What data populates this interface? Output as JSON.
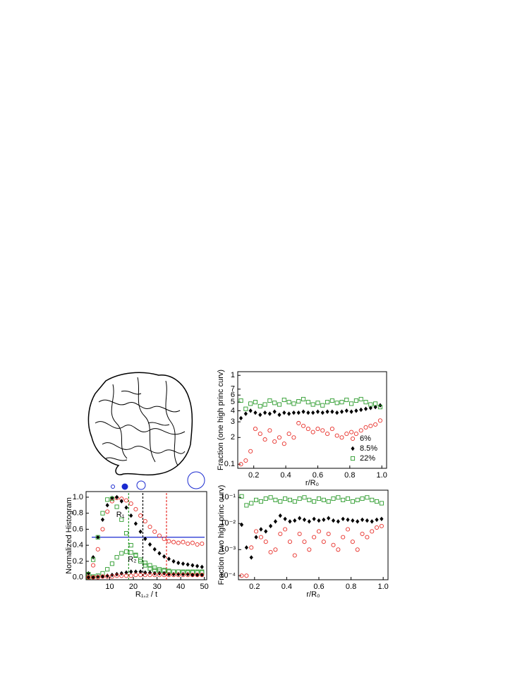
{
  "chart_data": [
    {
      "type": "scatter",
      "ylabel": "Normalized Histogram",
      "xlabel": "R₁,₂ / t",
      "x": [
        1,
        3,
        5,
        7,
        9,
        11,
        13,
        15,
        17,
        19,
        21,
        23,
        25,
        27,
        29,
        31,
        33,
        35,
        37,
        39,
        41,
        43,
        45,
        47,
        49
      ],
      "series": [
        {
          "color": "#e8302a",
          "marker": "circle",
          "values": [
            0.03,
            0.15,
            0.35,
            0.6,
            0.82,
            0.95,
            0.99,
            0.98,
            0.96,
            0.92,
            0.85,
            0.77,
            0.7,
            0.63,
            0.57,
            0.52,
            0.48,
            0.45,
            0.44,
            0.43,
            0.44,
            0.42,
            0.43,
            0.41,
            0.42
          ]
        },
        {
          "color": "#000000",
          "marker": "diamond",
          "values": [
            0.05,
            0.25,
            0.5,
            0.72,
            0.9,
            0.99,
            1.0,
            0.95,
            0.87,
            0.77,
            0.67,
            0.57,
            0.48,
            0.41,
            0.35,
            0.3,
            0.26,
            0.23,
            0.2,
            0.18,
            0.17,
            0.16,
            0.15,
            0.14,
            0.13
          ]
        },
        {
          "color": "#2a9a2a",
          "marker": "square",
          "values": [
            0.04,
            0.22,
            0.5,
            0.8,
            0.97,
            0.98,
            0.88,
            0.72,
            0.55,
            0.4,
            0.28,
            0.2,
            0.15,
            0.11,
            0.09,
            0.08,
            0.08,
            0.07,
            0.07,
            0.07,
            0.07,
            0.07,
            0.07,
            0.07,
            0.07
          ]
        },
        {
          "color": "#2a9a2a",
          "marker": "square",
          "values": [
            0,
            0.01,
            0.02,
            0.05,
            0.1,
            0.17,
            0.25,
            0.3,
            0.32,
            0.31,
            0.27,
            0.22,
            0.18,
            0.15,
            0.12,
            0.1,
            0.09,
            0.08,
            0.07,
            0.07,
            0.06,
            0.06,
            0.06,
            0.06,
            0.06
          ]
        },
        {
          "color": "#000000",
          "marker": "diamond",
          "values": [
            0,
            0,
            0.01,
            0.01,
            0.02,
            0.03,
            0.04,
            0.05,
            0.06,
            0.07,
            0.07,
            0.07,
            0.06,
            0.06,
            0.05,
            0.05,
            0.05,
            0.04,
            0.04,
            0.04,
            0.04,
            0.04,
            0.03,
            0.03,
            0.03
          ]
        },
        {
          "color": "#e8302a",
          "marker": "circle",
          "values": [
            0,
            0,
            0,
            0.01,
            0.01,
            0.01,
            0.02,
            0.02,
            0.02,
            0.02,
            0.03,
            0.03,
            0.03,
            0.03,
            0.03,
            0.03,
            0.03,
            0.03,
            0.03,
            0.03,
            0.03,
            0.03,
            0.03,
            0.03,
            0.03
          ]
        }
      ],
      "hlines": [
        {
          "value": 0.5,
          "color": "#1a2ad0"
        }
      ],
      "vlines": [
        {
          "value": 18,
          "color": "#2a9a2a"
        },
        {
          "value": 24,
          "color": "#000000"
        },
        {
          "value": 34,
          "color": "#e8302a"
        }
      ],
      "annotations": [
        {
          "text": "R₁",
          "x": 14.5,
          "y": 0.78
        },
        {
          "text": "R₂",
          "x": 19.5,
          "y": 0.22
        }
      ],
      "xlim": [
        0,
        51
      ],
      "ylim": [
        -0.03,
        1.07
      ],
      "xticks": [
        10,
        20,
        30,
        40,
        50
      ],
      "yticks": [
        {
          "value": 0,
          "label": "0.0"
        },
        0.2,
        0.4,
        0.6,
        0.8,
        {
          "value": 1,
          "label": "1.0"
        }
      ]
    },
    {
      "type": "scatter",
      "ylabel": "Fraction (one high princ curv)",
      "xlabel": "r/R₀",
      "log_y": true,
      "legend": "lower right",
      "x": [
        0.12,
        0.15,
        0.18,
        0.21,
        0.24,
        0.27,
        0.3,
        0.33,
        0.36,
        0.39,
        0.42,
        0.45,
        0.48,
        0.51,
        0.54,
        0.57,
        0.6,
        0.63,
        0.66,
        0.69,
        0.72,
        0.75,
        0.78,
        0.81,
        0.84,
        0.87,
        0.9,
        0.93,
        0.96,
        0.99
      ],
      "series": [
        {
          "name": "6%",
          "color": "#e8302a",
          "marker": "circle",
          "values": [
            0.1,
            0.11,
            0.14,
            0.25,
            0.22,
            0.19,
            0.24,
            0.18,
            0.2,
            0.17,
            0.22,
            0.2,
            0.29,
            0.27,
            0.25,
            0.23,
            0.25,
            0.24,
            0.22,
            0.25,
            0.21,
            0.2,
            0.22,
            0.23,
            0.22,
            0.24,
            0.26,
            0.27,
            0.28,
            0.31
          ]
        },
        {
          "name": "8.5%",
          "color": "#000000",
          "marker": "diamond",
          "values": [
            0.33,
            0.37,
            0.4,
            0.38,
            0.36,
            0.38,
            0.37,
            0.39,
            0.36,
            0.38,
            0.37,
            0.38,
            0.38,
            0.39,
            0.38,
            0.38,
            0.39,
            0.38,
            0.39,
            0.39,
            0.38,
            0.39,
            0.4,
            0.39,
            0.4,
            0.41,
            0.42,
            0.43,
            0.44,
            0.46
          ]
        },
        {
          "name": "22%",
          "color": "#2a9a2a",
          "marker": "square",
          "values": [
            0.52,
            0.42,
            0.48,
            0.5,
            0.45,
            0.47,
            0.52,
            0.49,
            0.47,
            0.53,
            0.5,
            0.48,
            0.51,
            0.54,
            0.5,
            0.47,
            0.49,
            0.46,
            0.5,
            0.52,
            0.49,
            0.5,
            0.53,
            0.48,
            0.52,
            0.54,
            0.5,
            0.47,
            0.48,
            0.44
          ]
        }
      ],
      "xlim": [
        0.1,
        1.03
      ],
      "ylim": [
        0.09,
        1.1
      ],
      "xticks": [
        0.2,
        0.4,
        0.6,
        0.8,
        {
          "value": 1,
          "label": "1.0"
        }
      ],
      "yticks": [
        0.1,
        {
          "value": 0.2,
          "label": "2"
        },
        {
          "value": 0.3,
          "label": "3"
        },
        {
          "value": 0.4,
          "label": "4"
        },
        {
          "value": 0.5,
          "label": "5"
        },
        {
          "value": 0.6,
          "label": "6"
        },
        {
          "value": 0.7,
          "label": "7"
        },
        1
      ]
    },
    {
      "type": "scatter",
      "ylabel": "Fraction (two high princ curv)",
      "xlabel": "r/R₀",
      "log_y": true,
      "x": [
        0.12,
        0.15,
        0.18,
        0.21,
        0.24,
        0.27,
        0.3,
        0.33,
        0.36,
        0.39,
        0.42,
        0.45,
        0.48,
        0.51,
        0.54,
        0.57,
        0.6,
        0.63,
        0.66,
        0.69,
        0.72,
        0.75,
        0.78,
        0.81,
        0.84,
        0.87,
        0.9,
        0.93,
        0.96,
        0.99
      ],
      "series": [
        {
          "color": "#e8302a",
          "marker": "circle",
          "values": [
            0.0001,
            0.0001,
            0.0012,
            0.005,
            0.003,
            0.002,
            0.0008,
            0.001,
            0.004,
            0.006,
            0.002,
            0.0006,
            0.004,
            0.002,
            0.001,
            0.003,
            0.005,
            0.002,
            0.004,
            0.0015,
            0.001,
            0.003,
            0.006,
            0.002,
            0.001,
            0.004,
            0.003,
            0.005,
            0.007,
            0.008
          ]
        },
        {
          "color": "#000000",
          "marker": "diamond",
          "values": [
            0.009,
            0.0012,
            0.0005,
            0.003,
            0.006,
            0.005,
            0.008,
            0.012,
            0.02,
            0.015,
            0.012,
            0.013,
            0.016,
            0.014,
            0.012,
            0.015,
            0.013,
            0.014,
            0.016,
            0.013,
            0.012,
            0.015,
            0.014,
            0.013,
            0.012,
            0.014,
            0.013,
            0.012,
            0.014,
            0.015
          ]
        },
        {
          "color": "#2a9a2a",
          "marker": "square",
          "values": [
            0.11,
            0.05,
            0.06,
            0.08,
            0.07,
            0.09,
            0.1,
            0.08,
            0.07,
            0.09,
            0.08,
            0.07,
            0.09,
            0.1,
            0.08,
            0.07,
            0.09,
            0.08,
            0.07,
            0.09,
            0.1,
            0.08,
            0.09,
            0.07,
            0.08,
            0.09,
            0.1,
            0.08,
            0.07,
            0.06
          ]
        }
      ],
      "xlim": [
        0.1,
        1.03
      ],
      "ylim": [
        7e-05,
        0.19
      ],
      "xticks": [
        0.2,
        0.4,
        0.6,
        0.8,
        {
          "value": 1,
          "label": "1.0"
        }
      ],
      "yticks": [
        {
          "value": 0.0001,
          "label": "10⁻⁴"
        },
        {
          "value": 0.001,
          "label": "10⁻³"
        },
        {
          "value": 0.01,
          "label": "10⁻²"
        },
        {
          "value": 0.1,
          "label": "10⁻¹"
        }
      ]
    }
  ]
}
